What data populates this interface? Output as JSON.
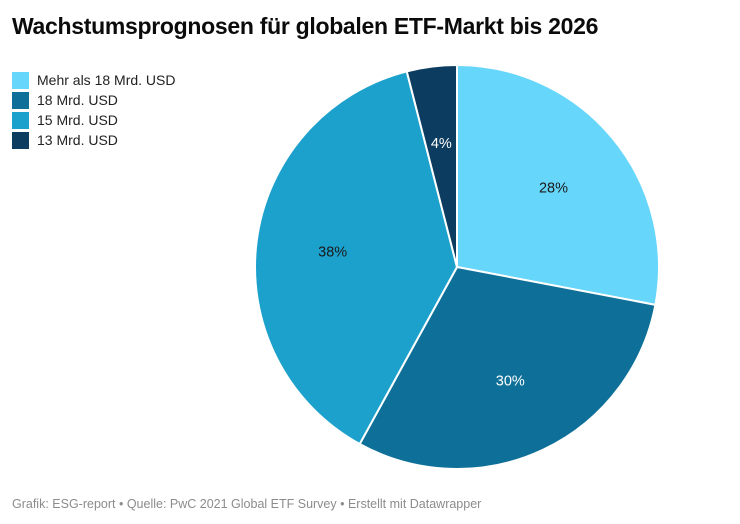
{
  "title": "Wachstumsprognosen für globalen ETF-Markt bis 2026",
  "footer": "Grafik: ESG-report • Quelle: PwC 2021 Global ETF Survey • Erstellt mit Datawrapper",
  "chart_data": {
    "type": "pie",
    "title": "Wachstumsprognosen für globalen ETF-Markt bis 2026",
    "direction": "clockwise",
    "start_angle_deg": 0,
    "legend_position": "top-left",
    "stroke_color": "#ffffff",
    "stroke_width": 2,
    "label_radius_fraction": 0.62,
    "slices": [
      {
        "label": "Mehr als 18 Mrd. USD",
        "value": 28,
        "display": "28%",
        "color": "#66D6FA",
        "text_color": "#1a1a1a"
      },
      {
        "label": "18 Mrd. USD",
        "value": 30,
        "display": "30%",
        "color": "#0E7098",
        "text_color": "#ffffff"
      },
      {
        "label": "15 Mrd. USD",
        "value": 38,
        "display": "38%",
        "color": "#1CA1CD",
        "text_color": "#1a1a1a"
      },
      {
        "label": "13 Mrd. USD",
        "value": 4,
        "display": "4%",
        "color": "#0C3C5F",
        "text_color": "#ffffff"
      }
    ]
  }
}
